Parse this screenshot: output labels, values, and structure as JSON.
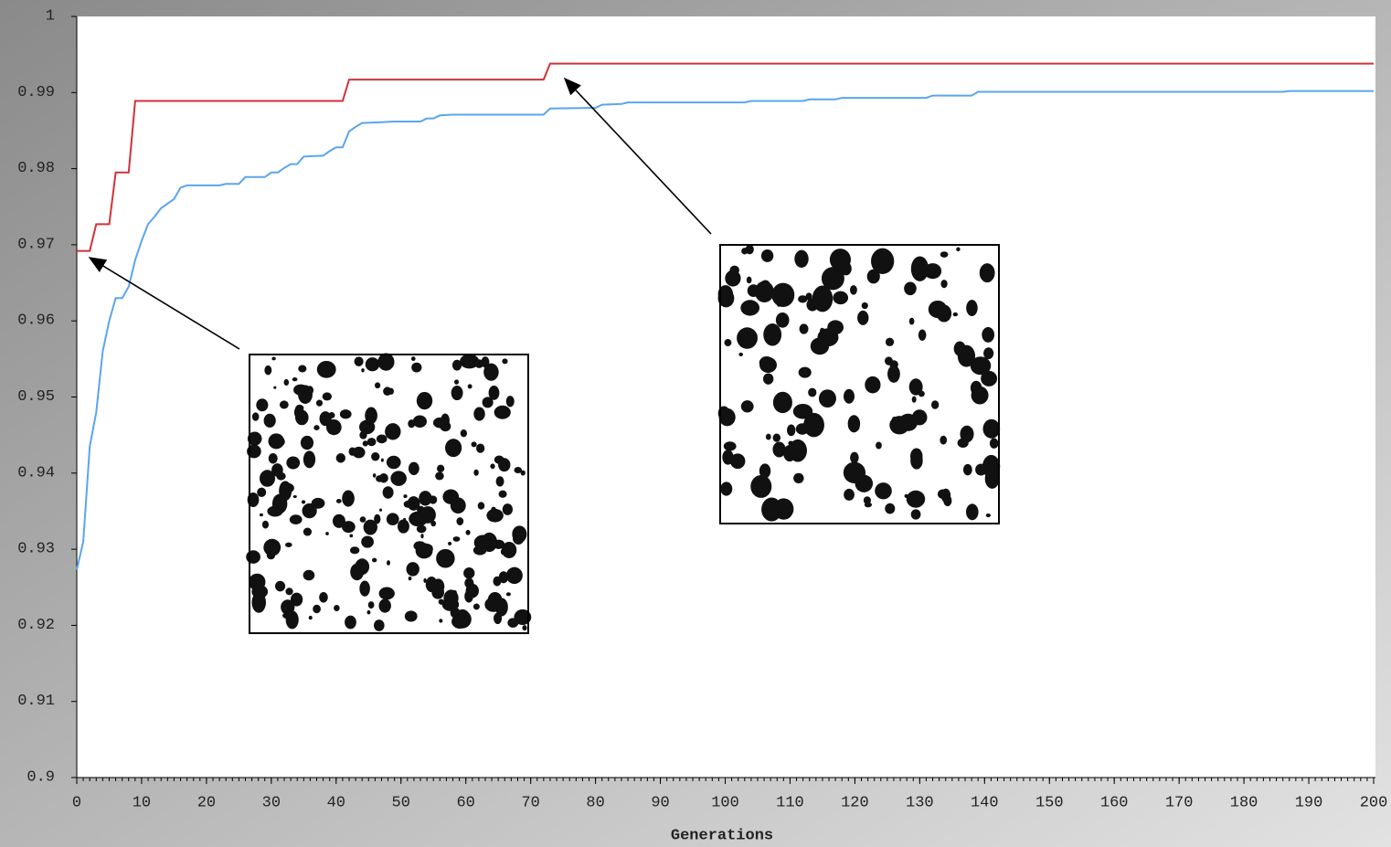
{
  "chart_data": {
    "type": "line",
    "xlabel": "Generations",
    "xlim": [
      0,
      200
    ],
    "xticks": [
      0,
      10,
      20,
      30,
      40,
      50,
      60,
      70,
      80,
      90,
      100,
      110,
      120,
      130,
      140,
      150,
      160,
      170,
      180,
      190,
      200
    ],
    "ylim": [
      0.9,
      1
    ],
    "yticks": [
      0.9,
      0.91,
      0.92,
      0.93,
      0.94,
      0.95,
      0.96,
      0.97,
      0.98,
      0.99,
      1
    ],
    "series": [
      {
        "color": "#d0323a",
        "x": [
          0,
          2,
          3,
          5,
          6,
          8,
          9,
          41,
          42,
          72,
          73,
          200
        ],
        "values": [
          0.9692,
          0.9692,
          0.9727,
          0.9727,
          0.9795,
          0.9795,
          0.9889,
          0.9889,
          0.9917,
          0.9917,
          0.9938,
          0.9938
        ]
      },
      {
        "color": "#5aa5ee",
        "x": [
          0,
          1,
          2,
          3,
          4,
          5,
          6,
          7,
          8,
          9,
          10,
          11,
          12,
          13,
          15,
          16,
          17,
          22,
          23,
          25,
          26,
          29,
          30,
          31,
          32,
          33,
          34,
          35,
          38,
          39,
          40,
          41,
          42,
          43,
          44,
          47,
          49,
          53,
          54,
          55,
          56,
          58,
          72,
          73,
          80,
          81,
          84,
          85,
          103,
          104,
          112,
          113,
          117,
          118,
          131,
          132,
          138,
          139,
          186,
          187,
          200
        ],
        "values": [
          0.9273,
          0.931,
          0.9435,
          0.948,
          0.956,
          0.96,
          0.963,
          0.963,
          0.9645,
          0.968,
          0.9705,
          0.9727,
          0.9737,
          0.9748,
          0.976,
          0.9775,
          0.9778,
          0.9778,
          0.978,
          0.978,
          0.9789,
          0.9789,
          0.9795,
          0.9795,
          0.9801,
          0.9806,
          0.9806,
          0.9816,
          0.9817,
          0.9823,
          0.9828,
          0.9828,
          0.9849,
          0.9855,
          0.986,
          0.9861,
          0.9862,
          0.9862,
          0.9866,
          0.9866,
          0.987,
          0.9871,
          0.9871,
          0.9879,
          0.988,
          0.9884,
          0.9885,
          0.9887,
          0.9887,
          0.9889,
          0.9889,
          0.9891,
          0.9891,
          0.9893,
          0.9893,
          0.9896,
          0.9896,
          0.9901,
          0.9901,
          0.9902,
          0.9902
        ]
      }
    ]
  }
}
